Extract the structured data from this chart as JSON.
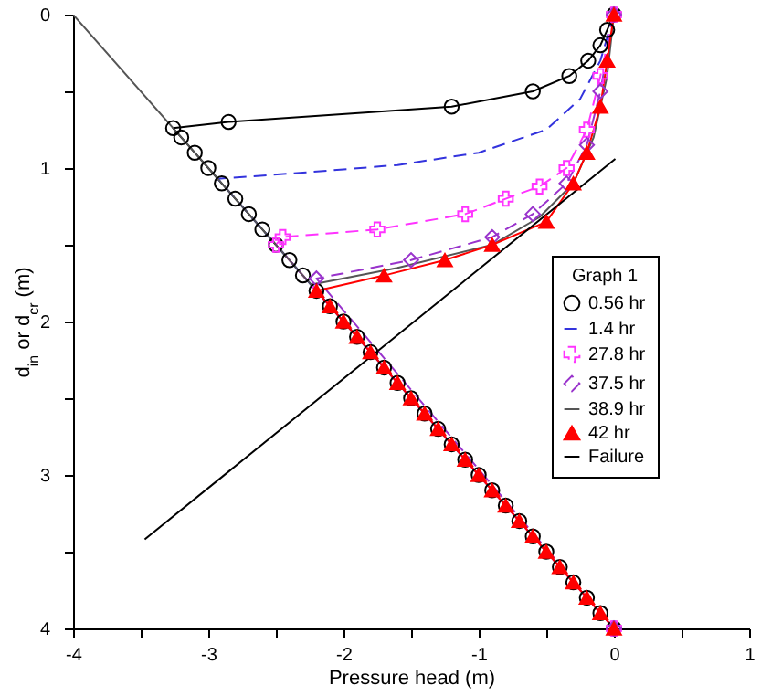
{
  "chart_data": {
    "type": "line",
    "xlabel": "Pressure head (m)",
    "ylabel": "d$_{in}$ or d$_{cr}$ (m)",
    "legend_title": "Graph 1",
    "legend": "right",
    "xlim": [
      -4,
      1
    ],
    "xticks": [
      -4,
      {
        "value": -3.5,
        "label": null
      },
      -3,
      {
        "value": -2.5,
        "label": null
      },
      -2,
      {
        "value": -1.5,
        "label": null
      },
      -1,
      {
        "value": -0.5,
        "label": null
      },
      0,
      {
        "value": 0.5,
        "label": null
      },
      1
    ],
    "ylim": [
      4,
      0
    ],
    "yticks": [
      0,
      {
        "value": 0.5,
        "label": null
      },
      1,
      {
        "value": 1.5,
        "label": null
      },
      2,
      {
        "value": 2.5,
        "label": null
      },
      3,
      {
        "value": 3.5,
        "label": null
      },
      4
    ],
    "grid": false,
    "series": [
      {
        "name": "0.56 hr",
        "color": "#000000",
        "marker": "circle",
        "line_style": "solid",
        "x": [
          0,
          -0.05,
          -0.1,
          -0.19,
          -0.33,
          -0.6,
          -1.2,
          -2.85,
          -3.26,
          -3.2,
          -3.1,
          -3.0,
          -2.9,
          -2.8,
          -2.7,
          -2.6,
          -2.5,
          -2.4,
          -2.3,
          -2.2,
          -2.1,
          -2.0,
          -1.9,
          -1.8,
          -1.7,
          -1.6,
          -1.5,
          -1.4,
          -1.3,
          -1.2,
          -1.1,
          -1.0,
          -0.9,
          -0.8,
          -0.7,
          -0.6,
          -0.5,
          -0.4,
          -0.3,
          -0.2,
          -0.1,
          0
        ],
        "values": [
          0,
          0.1,
          0.2,
          0.3,
          0.4,
          0.5,
          0.6,
          0.7,
          0.74,
          0.8,
          0.9,
          1.0,
          1.1,
          1.2,
          1.3,
          1.4,
          1.5,
          1.6,
          1.7,
          1.8,
          1.9,
          2.0,
          2.1,
          2.2,
          2.3,
          2.4,
          2.5,
          2.6,
          2.7,
          2.8,
          2.9,
          3.0,
          3.1,
          3.2,
          3.3,
          3.4,
          3.5,
          3.6,
          3.7,
          3.8,
          3.9,
          4
        ]
      },
      {
        "name": "1.4 hr",
        "color": "#3333dd",
        "marker": "none",
        "line_style": "dashed",
        "x": [
          0,
          -0.1,
          -0.25,
          -0.5,
          -1.0,
          -1.6,
          -2.3,
          -2.93,
          0
        ],
        "values": [
          0,
          0.3,
          0.55,
          0.75,
          0.9,
          0.98,
          1.03,
          1.07,
          4
        ]
      },
      {
        "name": "27.8 hr",
        "color": "#ff33ff",
        "marker": "cross",
        "line_style": "dashed",
        "x": [
          0,
          -0.1,
          -0.2,
          -0.35,
          -0.55,
          -0.8,
          -1.1,
          -1.75,
          -2.45,
          -2.5,
          0
        ],
        "values": [
          0,
          0.4,
          0.75,
          1.0,
          1.12,
          1.2,
          1.3,
          1.4,
          1.45,
          1.5,
          4
        ]
      },
      {
        "name": "37.5 hr",
        "color": "#9933cc",
        "marker": "diamond",
        "line_style": "dashed",
        "x": [
          0,
          -0.1,
          -0.2,
          -0.35,
          -0.6,
          -0.9,
          -1.5,
          -2.2,
          0
        ],
        "values": [
          0,
          0.5,
          0.85,
          1.1,
          1.3,
          1.45,
          1.6,
          1.72,
          4
        ]
      },
      {
        "name": "38.9 hr",
        "color": "#555555",
        "marker": "none",
        "line_style": "solid",
        "x": [
          -4,
          -2.24,
          -1.6,
          -0.9,
          -0.55,
          -0.3,
          -0.15,
          -0.05,
          0
        ],
        "values": [
          0,
          1.76,
          1.65,
          1.5,
          1.32,
          1.1,
          0.8,
          0.4,
          0
        ]
      },
      {
        "name": "42 hr",
        "color": "#ff0000",
        "marker": "triangle",
        "line_style": "solid",
        "x": [
          0,
          -0.05,
          -0.1,
          -0.2,
          -0.3,
          -0.5,
          -0.9,
          -1.25,
          -1.7,
          -2.2,
          -2.1,
          -2.0,
          -1.9,
          -1.8,
          -1.7,
          -1.6,
          -1.5,
          -1.4,
          -1.3,
          -1.2,
          -1.1,
          -1.0,
          -0.9,
          -0.8,
          -0.7,
          -0.6,
          -0.5,
          -0.4,
          -0.3,
          -0.2,
          -0.1,
          0
        ],
        "values": [
          0,
          0.3,
          0.6,
          0.9,
          1.1,
          1.35,
          1.5,
          1.6,
          1.7,
          1.8,
          1.9,
          2.0,
          2.1,
          2.2,
          2.3,
          2.4,
          2.5,
          2.6,
          2.7,
          2.8,
          2.9,
          3.0,
          3.1,
          3.2,
          3.3,
          3.4,
          3.5,
          3.6,
          3.7,
          3.8,
          3.9,
          4
        ]
      },
      {
        "name": "Failure",
        "color": "#000000",
        "marker": "none",
        "line_style": "solid",
        "x": [
          -3.47,
          0.01
        ],
        "values": [
          3.42,
          0.94
        ]
      }
    ]
  }
}
